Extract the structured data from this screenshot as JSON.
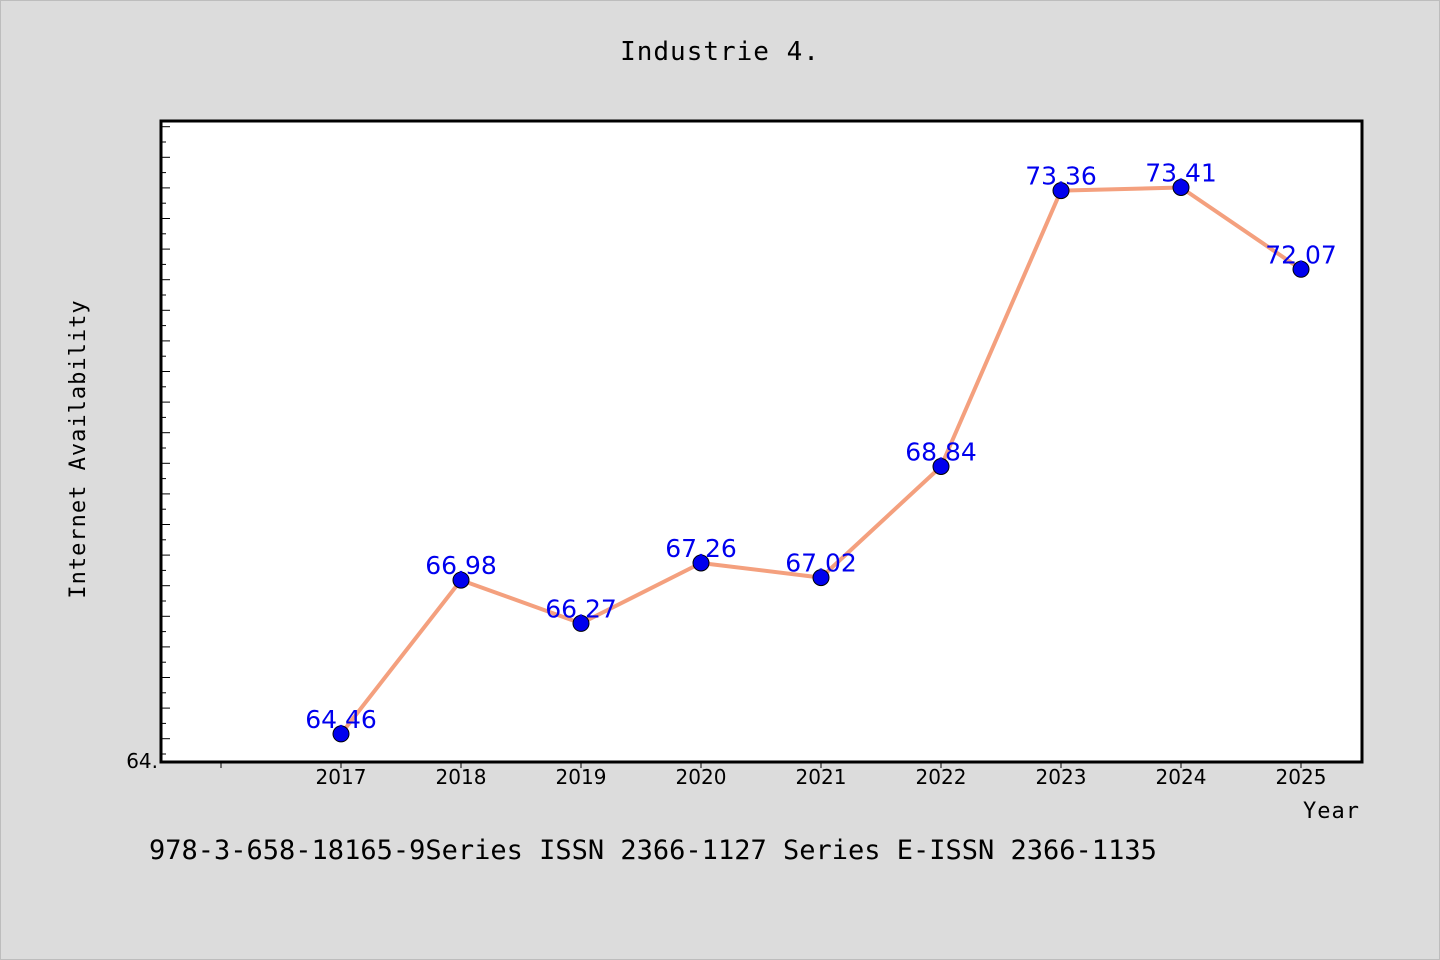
{
  "chart_data": {
    "type": "line",
    "title": "Industrie 4.",
    "xlabel": "Year",
    "ylabel": "Internet Availability",
    "categories": [
      "2017",
      "2018",
      "2019",
      "2020",
      "2021",
      "2022",
      "2023",
      "2024",
      "2025"
    ],
    "values": [
      64.46,
      66.98,
      66.27,
      67.26,
      67.02,
      68.84,
      73.36,
      73.41,
      72.07
    ],
    "data_labels": [
      "64.46",
      "66.98",
      "66.27",
      "67.26",
      "67.02",
      "68.84",
      "73.36",
      "73.41",
      "72.07"
    ],
    "ylim": [
      64.0,
      74.5
    ],
    "y_tick_labels": [
      "64."
    ],
    "line_color": "#f4a07e",
    "marker_color": "#0000ee",
    "label_color": "#0000ee",
    "plot_background": "#ffffff",
    "page_background": "#dcdcdc",
    "grid": false,
    "legend": "none"
  },
  "footer": {
    "note": "978-3-658-18165-9Series ISSN 2366-1127 Series E-ISSN 2366-1135"
  }
}
